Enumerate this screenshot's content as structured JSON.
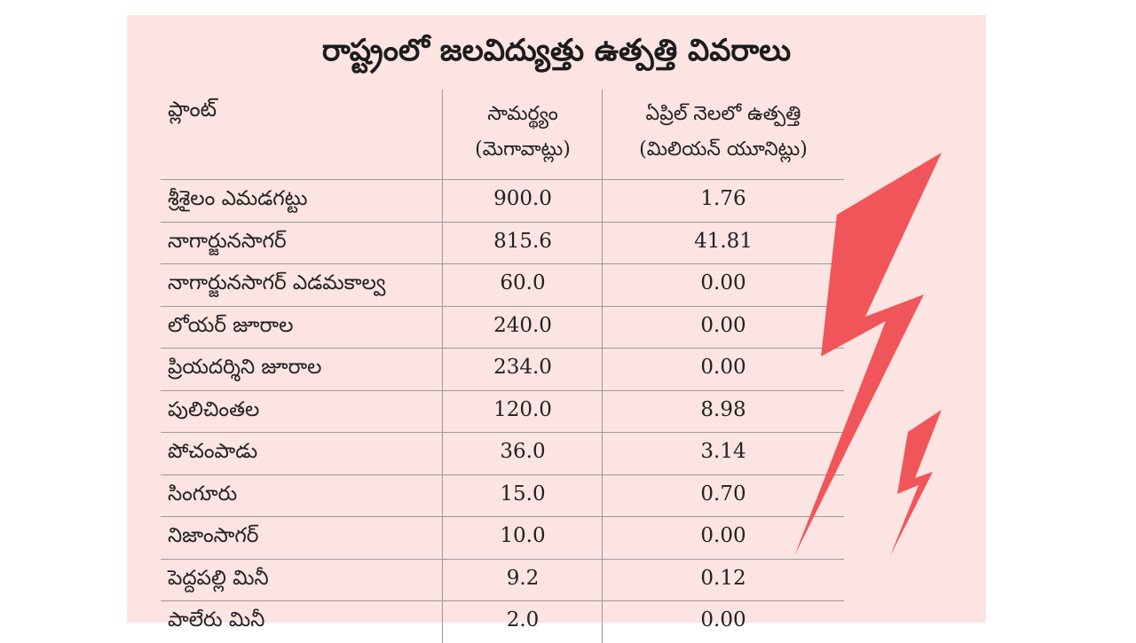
{
  "title": "రాష్ట్రంలో జలవిద్యుత్తు ఉత్పత్తి వివరాలు",
  "headers": {
    "plant": "ప్లాంట్",
    "capacity_line1": "సామర్థ్యం",
    "capacity_line2": "(మెగావాట్లు)",
    "generation_line1": "ఏప్రిల్ నెలలో ఉత్పత్తి",
    "generation_line2": "(మిలియన్ యూనిట్లు)"
  },
  "rows": [
    {
      "plant": "శ్రీశైలం ఎమడగట్టు",
      "capacity": "900.0",
      "generation": "1.76"
    },
    {
      "plant": "నాగార్జునసాగర్",
      "capacity": "815.6",
      "generation": "41.81"
    },
    {
      "plant": "నాగార్జునసాగర్ ఎడమకాల్వ",
      "capacity": "60.0",
      "generation": "0.00"
    },
    {
      "plant": "లోయర్ జూరాల",
      "capacity": "240.0",
      "generation": "0.00"
    },
    {
      "plant": "ప్రియదర్శిని జూరాల",
      "capacity": "234.0",
      "generation": "0.00"
    },
    {
      "plant": "పులిచింతల",
      "capacity": "120.0",
      "generation": "8.98"
    },
    {
      "plant": "పోచంపాడు",
      "capacity": "36.0",
      "generation": "3.14"
    },
    {
      "plant": "సింగూరు",
      "capacity": "15.0",
      "generation": "0.70"
    },
    {
      "plant": "నిజాంసాగర్",
      "capacity": "10.0",
      "generation": "0.00"
    },
    {
      "plant": "పెద్దపల్లి మినీ",
      "capacity": "9.2",
      "generation": "0.12"
    },
    {
      "plant": "పాలేరు మినీ",
      "capacity": "2.0",
      "generation": "0.00"
    }
  ],
  "decor": {
    "icon": "lightning-bolt-icon",
    "bolt_color": "#f0555a",
    "background_color": "#fbe4e2"
  }
}
